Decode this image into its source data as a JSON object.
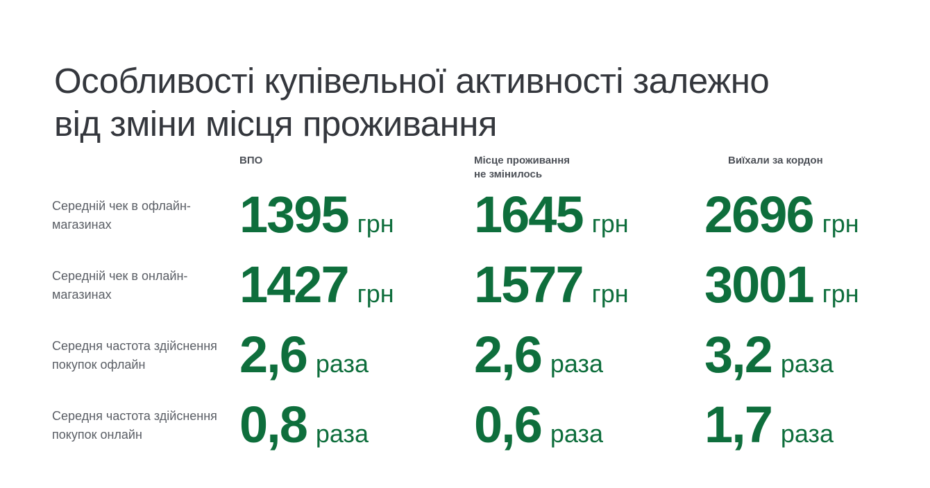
{
  "title": {
    "line1": "Особливості купівельної активності залежно",
    "line2": "від зміни місця проживання"
  },
  "colors": {
    "accent_green": "#0e6e3c",
    "title_text": "#34373d",
    "header_text": "#4c5057",
    "label_text": "#5a5e65",
    "background": "#ffffff"
  },
  "table": {
    "columns": [
      {
        "line1": "ВПО",
        "line2": ""
      },
      {
        "line1": "Місце проживання",
        "line2": "не змінилось"
      },
      {
        "line1": "Виїхали за кордон",
        "line2": ""
      }
    ],
    "rows": [
      {
        "label_line1": "Середній чек в офлайн-",
        "label_line2": "магазинах",
        "values": [
          {
            "number": "1395",
            "unit": "грн"
          },
          {
            "number": "1645",
            "unit": "грн"
          },
          {
            "number": "2696",
            "unit": "грн"
          }
        ]
      },
      {
        "label_line1": "Середній чек в онлайн-",
        "label_line2": "магазинах",
        "values": [
          {
            "number": "1427",
            "unit": "грн"
          },
          {
            "number": "1577",
            "unit": "грн"
          },
          {
            "number": "3001",
            "unit": "грн"
          }
        ]
      },
      {
        "label_line1": "Середня частота здійснення",
        "label_line2": "покупок офлайн",
        "values": [
          {
            "number": "2,6",
            "unit": "раза"
          },
          {
            "number": "2,6",
            "unit": "раза"
          },
          {
            "number": "3,2",
            "unit": "раза"
          }
        ]
      },
      {
        "label_line1": "Середня частота здійснення",
        "label_line2": "покупок онлайн",
        "values": [
          {
            "number": "0,8",
            "unit": "раза"
          },
          {
            "number": "0,6",
            "unit": "раза"
          },
          {
            "number": "1,7",
            "unit": "раза"
          }
        ]
      }
    ]
  },
  "chart_data": {
    "type": "table",
    "title": "Особливості купівельної активності залежно від зміни місця проживання",
    "categories": [
      "ВПО",
      "Місце проживання не змінилось",
      "Виїхали за кордон"
    ],
    "series": [
      {
        "name": "Середній чек в офлайн-магазинах",
        "unit": "грн",
        "values": [
          1395,
          1645,
          2696
        ]
      },
      {
        "name": "Середній чек в онлайн-магазинах",
        "unit": "грн",
        "values": [
          1427,
          1577,
          3001
        ]
      },
      {
        "name": "Середня частота здійснення покупок офлайн",
        "unit": "раза",
        "values": [
          2.6,
          2.6,
          3.2
        ]
      },
      {
        "name": "Середня частота здійснення покупок онлайн",
        "unit": "раза",
        "values": [
          0.8,
          0.6,
          1.7
        ]
      }
    ]
  }
}
